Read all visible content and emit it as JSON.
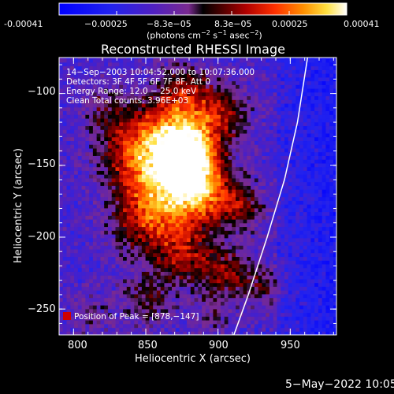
{
  "colorbar": {
    "tick_labels": [
      "-0.00041",
      "−0.00025",
      "−8.3e−05",
      "8.3e−05",
      "0.00025",
      "0.00041"
    ],
    "unit_main": "(photons cm",
    "unit_sup1": "−2",
    "unit_mid": " s",
    "unit_sup2": "−1",
    "unit_end": " asec",
    "unit_sup3": "−2",
    "unit_close": ")",
    "range": [
      -0.00041,
      0.00041
    ]
  },
  "chart_data": {
    "type": "heatmap",
    "title": "Reconstructed RHESSI Image",
    "xlabel": "Heliocentric X (arcsec)",
    "ylabel": "Heliocentric Y (arcsec)",
    "xlim": [
      790,
      982
    ],
    "ylim": [
      -268,
      -75
    ],
    "x_ticks": [
      800,
      850,
      900,
      950
    ],
    "y_ticks": [
      -100,
      -150,
      -200,
      -250
    ],
    "x_tick_labels": [
      "800",
      "850",
      "900",
      "950"
    ],
    "y_tick_labels": [
      "−100",
      "−150",
      "−200",
      "−250"
    ],
    "colorbar_range": [
      -0.00041,
      0.00041
    ],
    "peak": [
      878,
      -147
    ],
    "limb_points": [
      [
        911,
        -268
      ],
      [
        921,
        -240
      ],
      [
        934,
        -200
      ],
      [
        946,
        -160
      ],
      [
        955,
        -120
      ],
      [
        962,
        -75
      ]
    ]
  },
  "info": {
    "line1": "14−Sep−2003 10:04:52.000 to 10:07:36.000",
    "line2": "Detectors: 3F 4F 5F 6F 7F 8F, Att 0",
    "line3": "Energy Range: 12.0 − 25.0 keV",
    "line4": "Clean     Total counts: 3.96E+03",
    "peak_label": "Position of Peak = [878,−147]"
  },
  "footer": {
    "date": "5−May−2022 10:05"
  }
}
